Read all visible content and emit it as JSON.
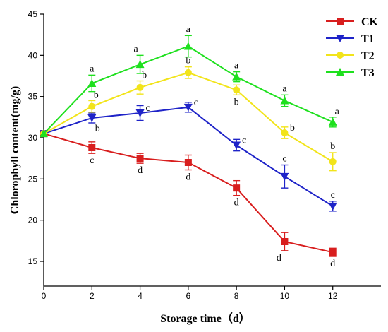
{
  "chart_data": {
    "type": "line",
    "xlabel": "Storage time（d）",
    "ylabel": "Chlorophyll content(mg/g)",
    "x": [
      0,
      2,
      4,
      6,
      8,
      10,
      12
    ],
    "xlim": [
      0,
      14
    ],
    "ylim": [
      12,
      45
    ],
    "xticks": [
      0,
      2,
      4,
      6,
      8,
      10,
      12
    ],
    "yticks": [
      15,
      20,
      25,
      30,
      35,
      40,
      45
    ],
    "legend_position": "top-right",
    "series": [
      {
        "name": "CK",
        "color": "#d81e1e",
        "marker": "square",
        "values": [
          30.5,
          28.8,
          27.5,
          27.0,
          23.9,
          17.4,
          16.1
        ],
        "errors": [
          0,
          0.7,
          0.6,
          0.9,
          0.9,
          1.1,
          0.5
        ],
        "labels": [
          "",
          "c",
          "d",
          "d",
          "d",
          "d",
          "d"
        ],
        "label_pos": [
          "",
          "below",
          "below",
          "below",
          "below",
          "below-left",
          "below"
        ]
      },
      {
        "name": "T1",
        "color": "#1e23c8",
        "marker": "triangle-down",
        "values": [
          30.5,
          32.4,
          33.0,
          33.7,
          29.1,
          25.3,
          21.7
        ],
        "errors": [
          0,
          0.6,
          0.9,
          0.6,
          0.7,
          1.4,
          0.6
        ],
        "labels": [
          "",
          "b",
          "c",
          "c",
          "c",
          "c",
          "c"
        ],
        "label_pos": [
          "",
          "below-right",
          "right",
          "right",
          "right",
          "above",
          "above"
        ]
      },
      {
        "name": "T2",
        "color": "#f2e41a",
        "marker": "circle",
        "values": [
          30.5,
          33.8,
          36.1,
          37.9,
          35.8,
          30.6,
          27.1
        ],
        "errors": [
          0,
          0.7,
          0.8,
          0.7,
          0.6,
          0.7,
          1.1
        ],
        "labels": [
          "",
          "b",
          "b",
          "b",
          "b",
          "b",
          "b"
        ],
        "label_pos": [
          "",
          "above-right",
          "above-right",
          "above",
          "below",
          "right",
          "above"
        ]
      },
      {
        "name": "T3",
        "color": "#1ee01e",
        "marker": "triangle-up",
        "values": [
          30.5,
          36.6,
          38.9,
          41.1,
          37.4,
          34.5,
          31.9
        ],
        "errors": [
          0,
          1.0,
          1.1,
          1.3,
          0.6,
          0.7,
          0.6
        ],
        "labels": [
          "",
          "a",
          "a",
          "a",
          "a",
          "a",
          "a"
        ],
        "label_pos": [
          "",
          "above",
          "above-left",
          "above",
          "above",
          "above",
          "above-right"
        ]
      }
    ]
  }
}
